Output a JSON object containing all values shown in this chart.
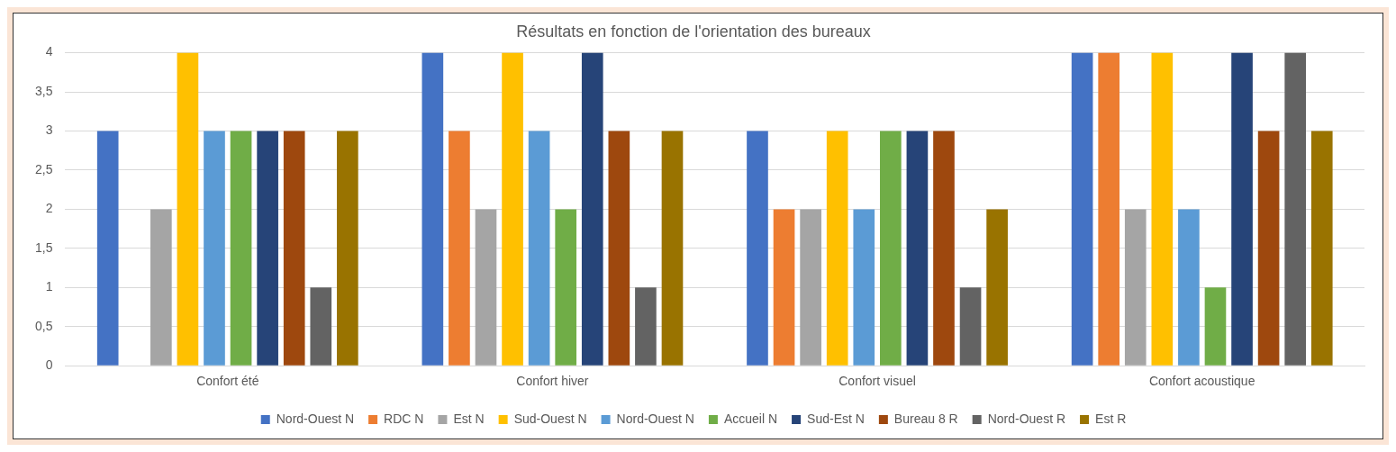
{
  "chart_data": {
    "type": "bar",
    "title": "Résultats en fonction de l'orientation des bureaux",
    "categories": [
      "Confort été",
      "Confort hiver",
      "Confort visuel",
      "Confort acoustique"
    ],
    "series": [
      {
        "name": "Nord-Ouest N",
        "color": "#4472c4",
        "values": [
          3,
          4,
          3,
          4
        ]
      },
      {
        "name": "RDC N",
        "color": "#ed7d31",
        "values": [
          0,
          3,
          2,
          4
        ]
      },
      {
        "name": "Est N",
        "color": "#a5a5a5",
        "values": [
          2,
          2,
          2,
          2
        ]
      },
      {
        "name": "Sud-Ouest N",
        "color": "#ffc000",
        "values": [
          4,
          4,
          3,
          4
        ]
      },
      {
        "name": "Nord-Ouest N",
        "color": "#5b9bd5",
        "values": [
          3,
          3,
          2,
          2
        ]
      },
      {
        "name": "Accueil N",
        "color": "#70ad47",
        "values": [
          3,
          2,
          3,
          1
        ]
      },
      {
        "name": "Sud-Est N",
        "color": "#264478",
        "values": [
          3,
          4,
          3,
          4
        ]
      },
      {
        "name": "Bureau 8 R",
        "color": "#9e480e",
        "values": [
          3,
          3,
          3,
          3
        ]
      },
      {
        "name": "Nord-Ouest R",
        "color": "#636363",
        "values": [
          1,
          1,
          1,
          4
        ]
      },
      {
        "name": "Est R",
        "color": "#997300",
        "values": [
          3,
          3,
          2,
          3
        ]
      }
    ],
    "ylim": [
      0,
      4
    ],
    "yticks": [
      0,
      {
        "value": 0.5,
        "label": "0,5"
      },
      1,
      {
        "value": 1.5,
        "label": "1,5"
      },
      2,
      {
        "value": 2.5,
        "label": "2,5"
      },
      3,
      {
        "value": 3.5,
        "label": "3,5"
      },
      4
    ],
    "grid": "y",
    "legend": "bottom"
  }
}
